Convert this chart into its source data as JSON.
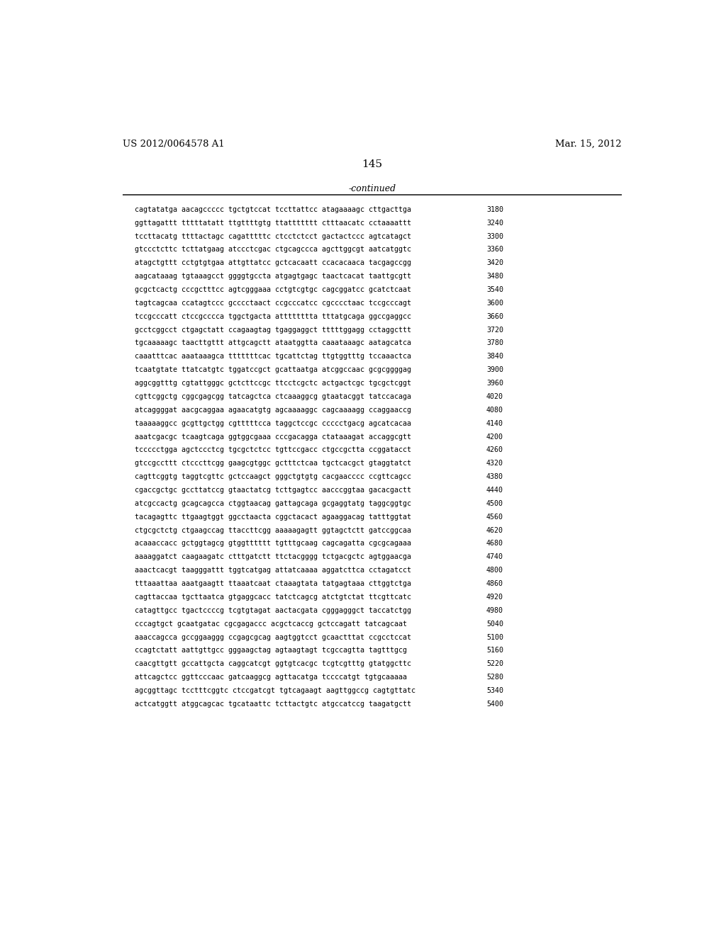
{
  "header_left": "US 2012/0064578 A1",
  "header_right": "Mar. 15, 2012",
  "page_number": "145",
  "continued_text": "-continued",
  "background_color": "#ffffff",
  "text_color": "#000000",
  "font_size": 7.2,
  "header_font_size": 9.5,
  "page_num_font_size": 11,
  "continued_font_size": 9.0,
  "sequence_lines": [
    [
      "cagtatatga aacagccccc tgctgtccat tccttattcc atagaaaagc cttgacttga",
      "3180"
    ],
    [
      "ggttagattt tttttatatt ttgttttgtg ttattttttt ctttaacatc cctaaaattt",
      "3240"
    ],
    [
      "tccttacatg ttttactagc cagatttttc ctcctctcct gactactccc agtcatagct",
      "3300"
    ],
    [
      "gtccctcttc tcttatgaag atccctcgac ctgcagccca agcttggcgt aatcatggtc",
      "3360"
    ],
    [
      "atagctgttt cctgtgtgaa attgttatcc gctcacaatt ccacacaaca tacgagccgg",
      "3420"
    ],
    [
      "aagcataaag tgtaaagcct ggggtgccta atgagtgagc taactcacat taattgcgtt",
      "3480"
    ],
    [
      "gcgctcactg cccgctttcc agtcgggaaa cctgtcgtgc cagcggatcc gcatctcaat",
      "3540"
    ],
    [
      "tagtcagcaa ccatagtccc gcccctaact ccgcccatcc cgcccctaac tccgcccagt",
      "3600"
    ],
    [
      "tccgcccatt ctccgcccca tggctgacta atttttttta tttatgcaga ggccgaggcc",
      "3660"
    ],
    [
      "gcctcggcct ctgagctatt ccagaagtag tgaggaggct tttttggagg cctaggcttt",
      "3720"
    ],
    [
      "tgcaaaaagc taacttgttt attgcagctt ataatggtta caaataaagc aatagcatca",
      "3780"
    ],
    [
      "caaatttcac aaataaagca tttttttcac tgcattctag ttgtggtttg tccaaactca",
      "3840"
    ],
    [
      "tcaatgtate ttatcatgtc tggatccgct gcattaatga atcggccaac gcgcggggag",
      "3900"
    ],
    [
      "aggcggtttg cgtattgggc gctcttccgc ttcctcgctc actgactcgc tgcgctcggt",
      "3960"
    ],
    [
      "cgttcggctg cggcgagcgg tatcagctca ctcaaaggcg gtaatacggt tatccacaga",
      "4020"
    ],
    [
      "atcaggggat aacgcaggaa agaacatgtg agcaaaaggc cagcaaaagg ccaggaaccg",
      "4080"
    ],
    [
      "taaaaaggcc gcgttgctgg cgtttttcca taggctccgc ccccctgacg agcatcacaa",
      "4140"
    ],
    [
      "aaatcgacgc tcaagtcaga ggtggcgaaa cccgacagga ctataaagat accaggcgtt",
      "4200"
    ],
    [
      "tccccctgga agctccctcg tgcgctctcc tgttccgacc ctgccgctta ccggatacct",
      "4260"
    ],
    [
      "gtccgccttt ctcccttcgg gaagcgtggc gctttctcaa tgctcacgct gtaggtatct",
      "4320"
    ],
    [
      "cagttcggtg taggtcgttc gctccaagct gggctgtgtg cacgaacccc ccgttcagcc",
      "4380"
    ],
    [
      "cgaccgctgc gccttatccg gtaactatcg tcttgagtcc aacccggtaa gacacgactt",
      "4440"
    ],
    [
      "atcgccactg gcagcagcca ctggtaacag gattagcaga gcgaggtatg taggcggtgc",
      "4500"
    ],
    [
      "tacagagttc ttgaagtggt ggcctaacta cggctacact agaaggacag tatttggtat",
      "4560"
    ],
    [
      "ctgcgctctg ctgaagccag ttaccttcgg aaaaagagtt ggtagctctt gatccggcaa",
      "4620"
    ],
    [
      "acaaaccacc gctggtagcg gtggtttttt tgtttgcaag cagcagatta cgcgcagaaa",
      "4680"
    ],
    [
      "aaaaggatct caagaagatc ctttgatctt ttctacgggg tctgacgctc agtggaacga",
      "4740"
    ],
    [
      "aaactcacgt taagggattt tggtcatgag attatcaaaa aggatcttca cctagatcct",
      "4800"
    ],
    [
      "tttaaattaa aaatgaagtt ttaaatcaat ctaaagtata tatgagtaaa cttggtctga",
      "4860"
    ],
    [
      "cagttaccaa tgcttaatca gtgaggcacc tatctcagcg atctgtctat ttcgttcatc",
      "4920"
    ],
    [
      "catagttgcc tgactccccg tcgtgtagat aactacgata cgggagggct taccatctgg",
      "4980"
    ],
    [
      "cccagtgct gcaatgatac cgcgagaccc acgctcaccg gctccagatt tatcagcaat",
      "5040"
    ],
    [
      "aaaccagcca gccggaaggg ccgagcgcag aagtggtcct gcaactttat ccgcctccat",
      "5100"
    ],
    [
      "ccagtctatt aattgttgcc gggaagctag agtaagtagt tcgccagtta tagtttgcg",
      "5160"
    ],
    [
      "caacgttgtt gccattgcta caggcatcgt ggtgtcacgc tcgtcgtttg gtatggcttc",
      "5220"
    ],
    [
      "attcagctcc ggttcccaac gatcaaggcg agttacatga tccccatgt tgtgcaaaaa",
      "5280"
    ],
    [
      "agcggttagc tcctttcggtc ctccgatcgt tgtcagaagt aagttggccg cagtgttatc",
      "5340"
    ],
    [
      "actcatggtt atggcagcac tgcataattc tcttactgtc atgccatccg taagatgctt",
      "5400"
    ]
  ]
}
